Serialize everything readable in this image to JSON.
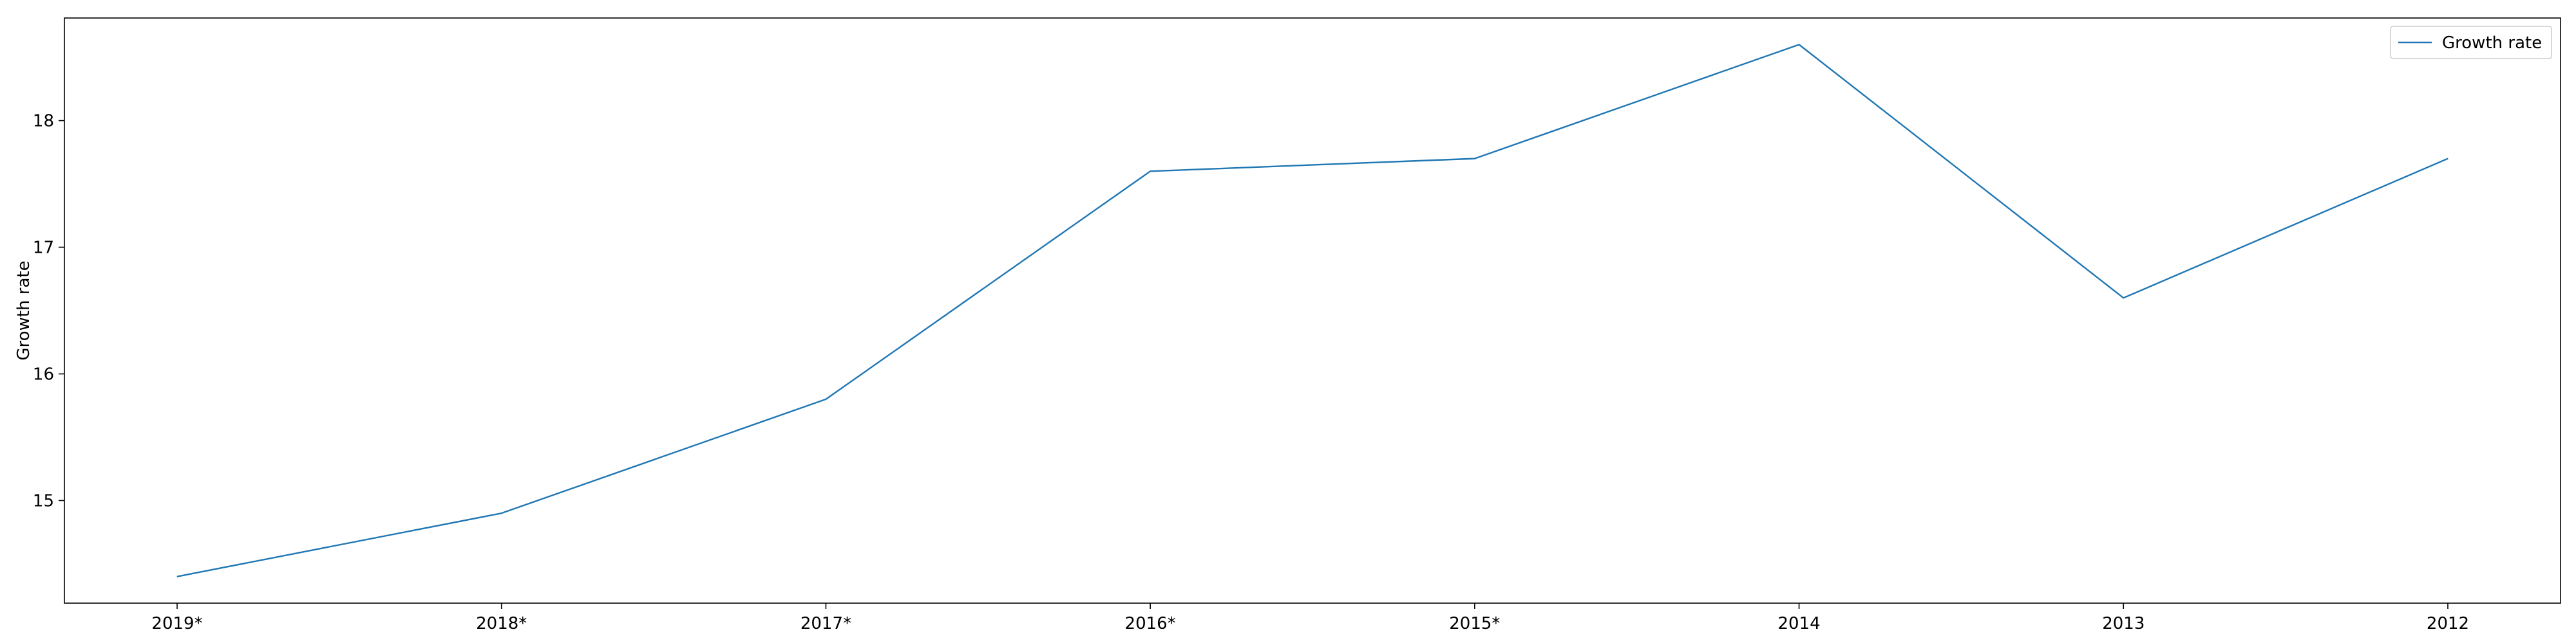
{
  "chart_data": {
    "type": "line",
    "title": "",
    "xlabel": "",
    "ylabel": "Growth rate",
    "categories": [
      "2019*",
      "2018*",
      "2017*",
      "2016*",
      "2015*",
      "2014",
      "2013",
      "2012"
    ],
    "series": [
      {
        "name": "Growth rate",
        "color": "#1f77b4",
        "values": [
          14.4,
          14.9,
          15.8,
          17.6,
          17.7,
          18.6,
          16.6,
          17.7
        ]
      }
    ],
    "ylim": [
      14.19,
      18.81
    ],
    "yticks": [
      15,
      16,
      17,
      18
    ],
    "grid": false,
    "legend_position": "top-right"
  }
}
